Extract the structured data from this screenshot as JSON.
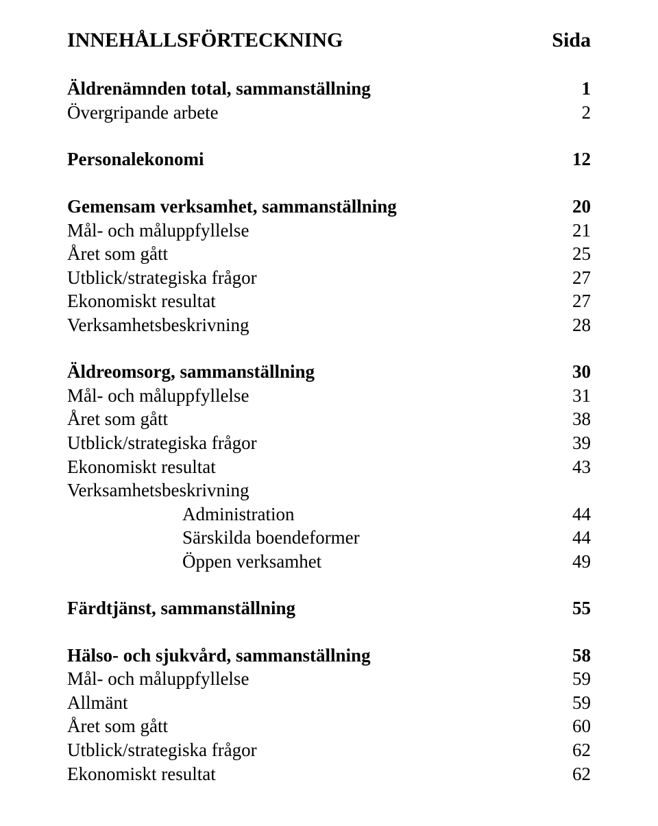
{
  "title": {
    "label": "INNEHÅLLSFÖRTECKNING",
    "page": "Sida"
  },
  "rows": [
    {
      "kind": "gap-lg"
    },
    {
      "kind": "bold",
      "label": "Äldrenämnden total, sammanställning",
      "page": "1"
    },
    {
      "kind": "normal",
      "label": "Övergripande arbete",
      "page": "2"
    },
    {
      "kind": "gap-lg"
    },
    {
      "kind": "bold",
      "label": "Personalekonomi",
      "page": "12"
    },
    {
      "kind": "gap-lg"
    },
    {
      "kind": "bold",
      "label": "Gemensam verksamhet, sammanställning",
      "page": "20"
    },
    {
      "kind": "normal",
      "label": "Mål- och måluppfyllelse",
      "page": "21"
    },
    {
      "kind": "normal",
      "label": "Året som gått",
      "page": "25"
    },
    {
      "kind": "normal",
      "label": "Utblick/strategiska frågor",
      "page": "27"
    },
    {
      "kind": "normal",
      "label": "Ekonomiskt resultat",
      "page": "27"
    },
    {
      "kind": "normal",
      "label": "Verksamhetsbeskrivning",
      "page": "28"
    },
    {
      "kind": "gap-lg"
    },
    {
      "kind": "bold",
      "label": "Äldreomsorg, sammanställning",
      "page": "30"
    },
    {
      "kind": "normal",
      "label": "Mål- och måluppfyllelse",
      "page": "31"
    },
    {
      "kind": "normal",
      "label": "Året som gått",
      "page": "38"
    },
    {
      "kind": "normal",
      "label": "Utblick/strategiska frågor",
      "page": "39"
    },
    {
      "kind": "normal",
      "label": "Ekonomiskt resultat",
      "page": "43"
    },
    {
      "kind": "normal",
      "label": "Verksamhetsbeskrivning",
      "page": ""
    },
    {
      "kind": "indent",
      "label": "Administration",
      "page": "44"
    },
    {
      "kind": "indent",
      "label": "Särskilda boendeformer",
      "page": "44"
    },
    {
      "kind": "indent",
      "label": "Öppen verksamhet",
      "page": "49"
    },
    {
      "kind": "gap-lg"
    },
    {
      "kind": "bold",
      "label": "Färdtjänst, sammanställning",
      "page": "55"
    },
    {
      "kind": "gap-lg"
    },
    {
      "kind": "bold",
      "label": "Hälso- och sjukvård, sammanställning",
      "page": "58"
    },
    {
      "kind": "normal",
      "label": "Mål- och måluppfyllelse",
      "page": "59"
    },
    {
      "kind": "normal",
      "label": "Allmänt",
      "page": "59"
    },
    {
      "kind": "normal",
      "label": "Året som gått",
      "page": "60"
    },
    {
      "kind": "normal",
      "label": "Utblick/strategiska frågor",
      "page": "62"
    },
    {
      "kind": "normal",
      "label": "Ekonomiskt resultat",
      "page": "62"
    }
  ]
}
